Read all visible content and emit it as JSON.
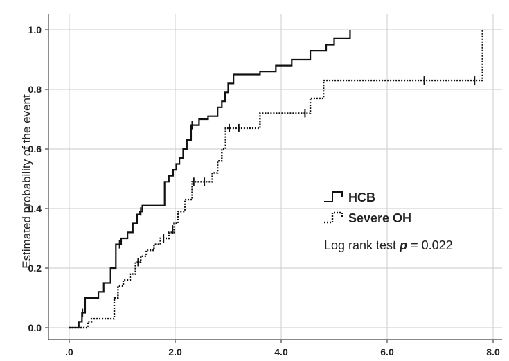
{
  "chart_data": {
    "type": "line",
    "step": true,
    "title": "",
    "xlabel": "",
    "ylabel": "Estimated probability of the event",
    "xlim": [
      0,
      8.1
    ],
    "ylim": [
      -0.05,
      1.05
    ],
    "x_ticks": [
      0,
      2,
      4,
      6,
      8
    ],
    "x_tick_labels": [
      ".0",
      "2.0",
      "4.0",
      "6.0",
      "8.0"
    ],
    "y_ticks": [
      0,
      0.2,
      0.4,
      0.6,
      0.8,
      1.0
    ],
    "y_tick_labels": [
      "0.0",
      "0.2",
      "0.4",
      "0.6",
      "0.8",
      "1.0"
    ],
    "grid": true,
    "legend_position": "right-center",
    "series": [
      {
        "name": "HCB",
        "line_style": "solid",
        "color": "#111111",
        "x": [
          0,
          0.18,
          0.24,
          0.3,
          0.55,
          0.65,
          0.78,
          0.88,
          0.98,
          1.1,
          1.2,
          1.28,
          1.33,
          1.38,
          1.8,
          1.88,
          1.96,
          2.02,
          2.08,
          2.15,
          2.22,
          2.3,
          2.45,
          2.62,
          2.8,
          2.88,
          2.94,
          3.0,
          3.1,
          3.6,
          3.9,
          4.2,
          4.55,
          4.85,
          5.0,
          5.3
        ],
        "y": [
          0,
          0.02,
          0.05,
          0.1,
          0.12,
          0.15,
          0.2,
          0.28,
          0.3,
          0.32,
          0.35,
          0.38,
          0.39,
          0.41,
          0.49,
          0.51,
          0.53,
          0.55,
          0.57,
          0.6,
          0.63,
          0.68,
          0.7,
          0.71,
          0.74,
          0.76,
          0.79,
          0.82,
          0.85,
          0.86,
          0.88,
          0.9,
          0.93,
          0.95,
          0.97,
          1.0
        ],
        "censor_x": [
          0.25,
          0.95,
          1.35,
          2.32
        ],
        "censor_y": [
          0.05,
          0.28,
          0.39,
          0.68
        ]
      },
      {
        "name": "Severe OH",
        "line_style": "dotted",
        "color": "#111111",
        "x": [
          0,
          0.35,
          0.42,
          0.85,
          0.92,
          1.02,
          1.15,
          1.25,
          1.35,
          1.45,
          1.6,
          1.72,
          1.88,
          1.98,
          2.05,
          2.18,
          2.32,
          2.7,
          2.8,
          2.88,
          2.95,
          3.6,
          4.55,
          4.8,
          7.8
        ],
        "y": [
          0,
          0.02,
          0.03,
          0.1,
          0.14,
          0.16,
          0.18,
          0.22,
          0.24,
          0.26,
          0.28,
          0.3,
          0.32,
          0.35,
          0.39,
          0.43,
          0.49,
          0.52,
          0.56,
          0.6,
          0.67,
          0.72,
          0.77,
          0.83,
          1.0
        ],
        "censor_x": [
          1.3,
          1.78,
          1.95,
          2.35,
          2.55,
          3.02,
          3.2,
          4.45,
          6.7,
          7.65
        ],
        "censor_y": [
          0.22,
          0.3,
          0.33,
          0.49,
          0.49,
          0.67,
          0.67,
          0.72,
          0.83,
          0.83
        ]
      }
    ],
    "annotation": {
      "prefix": "Log rank test ",
      "p_symbol": "p",
      "suffix": " = 0.022"
    }
  }
}
